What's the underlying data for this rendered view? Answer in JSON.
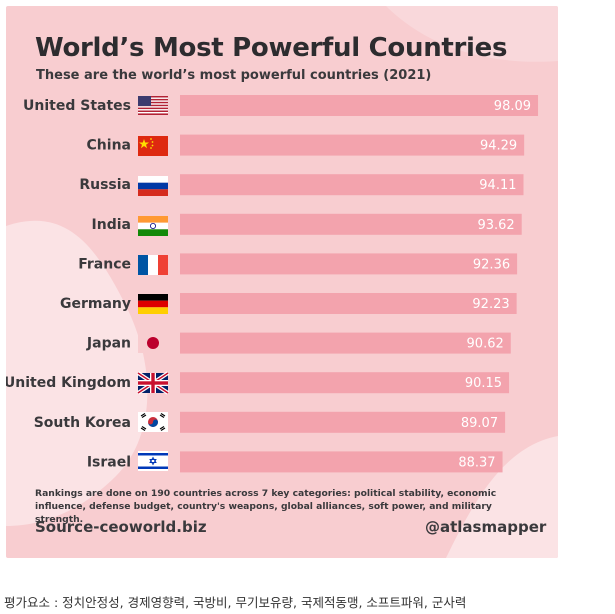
{
  "chart_data": {
    "type": "bar",
    "orientation": "horizontal",
    "title": "World’s Most Powerful Countries",
    "subtitle": "These are the world’s most powerful countries (2021)",
    "categories": [
      "United States",
      "China",
      "Russia",
      "India",
      "France",
      "Germany",
      "Japan",
      "United Kingdom",
      "South Korea",
      "Israel"
    ],
    "values": [
      98.09,
      94.29,
      94.11,
      93.62,
      92.36,
      92.23,
      90.62,
      90.15,
      89.07,
      88.37
    ],
    "value_labels": [
      "98.09",
      "94.29",
      "94.11",
      "93.62",
      "92.36",
      "92.23",
      "90.62",
      "90.15",
      "89.07",
      "88.37"
    ],
    "flags": [
      "us-flag-icon",
      "china-flag-icon",
      "russia-flag-icon",
      "india-flag-icon",
      "france-flag-icon",
      "germany-flag-icon",
      "japan-flag-icon",
      "uk-flag-icon",
      "south-korea-flag-icon",
      "israel-flag-icon"
    ],
    "xlim": [
      0,
      100
    ],
    "xlabel": "",
    "ylabel": "",
    "bar_color": "#f3a3ad",
    "label_color": "#ffffff"
  },
  "footnote": "Rankings are done on 190 countries across 7 key categories: political stability, economic influence, defense budget, country's weapons, global alliances, soft power, and military strength.",
  "source": "Source-ceoworld.biz",
  "handle": "@atlasmapper",
  "caption": "평가요소 : 정치안정성, 경제영향력, 국방비, 무기보유량, 국제적동맹, 소프트파워, 군사력",
  "colors": {
    "background": "#f8cdd0",
    "blob": "#fbe3e5",
    "text": "#3a393c"
  }
}
